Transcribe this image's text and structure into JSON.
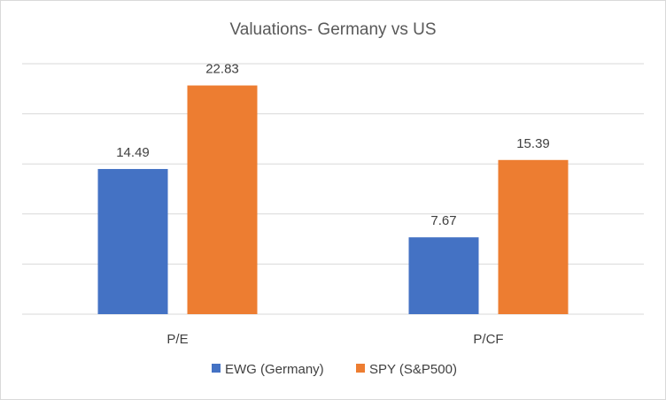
{
  "chart_data": {
    "type": "bar",
    "title": "Valuations- Germany vs US",
    "categories": [
      "P/E",
      "P/CF"
    ],
    "series": [
      {
        "name": "EWG (Germany)",
        "color": "#4472c4",
        "values": [
          14.49,
          7.67
        ]
      },
      {
        "name": "SPY (S&P500)",
        "color": "#ed7d31",
        "values": [
          22.83,
          15.39
        ]
      }
    ],
    "ylim": [
      0,
      25
    ],
    "gridlines": [
      0,
      5,
      10,
      15,
      20,
      25
    ],
    "xlabel": "",
    "ylabel": "",
    "legend": "bottom",
    "grid": true
  }
}
